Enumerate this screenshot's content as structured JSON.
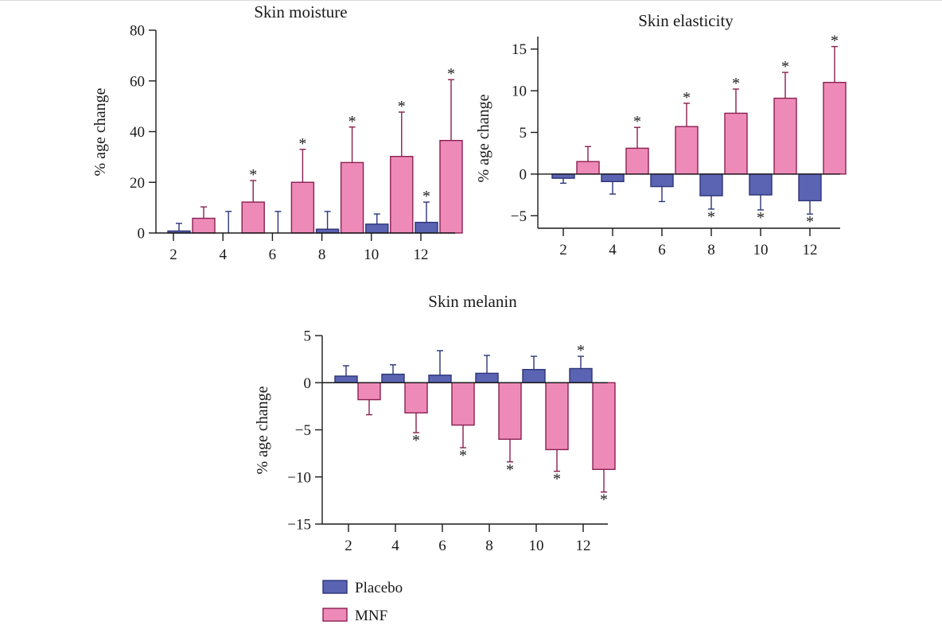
{
  "chart_data": [
    {
      "type": "bar",
      "title": "Skin moisture",
      "ylabel": "% age change",
      "xlabel": "",
      "categories": [
        "2",
        "4",
        "6",
        "8",
        "10",
        "12"
      ],
      "ylim": [
        0,
        80
      ],
      "yticks": [
        0,
        20,
        40,
        60,
        80
      ],
      "grid": false,
      "series": [
        {
          "name": "Placebo",
          "values": [
            0.8,
            0,
            0,
            1.5,
            3.5,
            4.2
          ],
          "error": [
            3.0,
            8.5,
            8.5,
            7.0,
            4.0,
            8.0
          ],
          "significant": [
            false,
            false,
            false,
            false,
            false,
            true
          ]
        },
        {
          "name": "MNF",
          "values": [
            5.8,
            12.2,
            20.0,
            27.8,
            30.2,
            36.5
          ],
          "error": [
            4.5,
            8.5,
            13.0,
            14.0,
            17.5,
            24.0
          ],
          "significant": [
            false,
            true,
            true,
            true,
            true,
            true
          ]
        }
      ]
    },
    {
      "type": "bar",
      "title": "Skin elasticity",
      "ylabel": "% age change",
      "xlabel": "",
      "categories": [
        "2",
        "4",
        "6",
        "8",
        "10",
        "12"
      ],
      "ylim": [
        -6.5,
        16.5
      ],
      "yticks": [
        -5,
        0,
        5,
        10,
        15
      ],
      "grid": false,
      "series": [
        {
          "name": "Placebo",
          "values": [
            -0.5,
            -0.9,
            -1.5,
            -2.6,
            -2.5,
            -3.2
          ],
          "error": [
            0.6,
            1.5,
            1.8,
            1.6,
            1.8,
            1.6
          ],
          "significant": [
            false,
            false,
            false,
            true,
            true,
            true
          ]
        },
        {
          "name": "MNF",
          "values": [
            1.5,
            3.1,
            5.7,
            7.3,
            9.1,
            11.0
          ],
          "error": [
            1.8,
            2.5,
            2.8,
            2.9,
            3.1,
            4.3
          ],
          "significant": [
            false,
            true,
            true,
            true,
            true,
            true
          ]
        }
      ]
    },
    {
      "type": "bar",
      "title": "Skin melanin",
      "ylabel": "% age change",
      "xlabel": "",
      "categories": [
        "2",
        "4",
        "6",
        "8",
        "10",
        "12"
      ],
      "ylim": [
        -15,
        5
      ],
      "yticks": [
        -15,
        -10,
        -5,
        0,
        5
      ],
      "grid": false,
      "series": [
        {
          "name": "Placebo",
          "values": [
            0.7,
            0.9,
            0.8,
            1.0,
            1.4,
            1.5
          ],
          "error": [
            1.1,
            1.0,
            2.6,
            1.9,
            1.4,
            1.3
          ],
          "significant": [
            false,
            false,
            false,
            false,
            false,
            true
          ]
        },
        {
          "name": "MNF",
          "values": [
            -1.8,
            -3.2,
            -4.5,
            -6.0,
            -7.1,
            -9.2
          ],
          "error": [
            1.6,
            2.1,
            2.4,
            2.4,
            2.3,
            2.4
          ],
          "significant": [
            false,
            true,
            true,
            true,
            true,
            true
          ]
        }
      ]
    }
  ],
  "legend": {
    "position": "bottom-center",
    "items": [
      {
        "label": "Placebo",
        "color": "#5a64b2",
        "stroke": "#2d3478"
      },
      {
        "label": "MNF",
        "color": "#ee8ab8",
        "stroke": "#8a1f52"
      }
    ]
  },
  "significance_marker": "*",
  "colors": {
    "placebo_fill": "#5a64b2",
    "placebo_stroke": "#2d3478",
    "mnf_fill": "#ee8ab8",
    "mnf_stroke": "#8a1f52",
    "axis": "#1a1a1a"
  }
}
